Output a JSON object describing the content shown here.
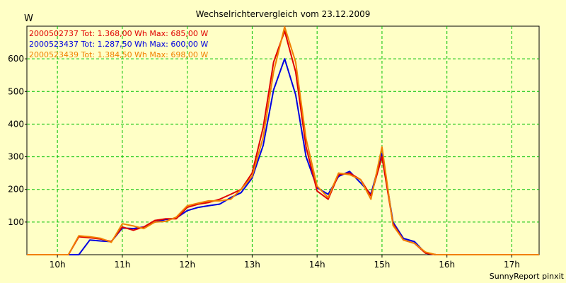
{
  "chart_data": {
    "type": "line",
    "title": "Wechselrichtervergleich vom 23.12.2009",
    "ylabel": "W",
    "footer": "SunnyReport pinxit",
    "xlim": [
      9.53,
      17.42
    ],
    "ylim": [
      0,
      700
    ],
    "grid": true,
    "legend_position": "top-left",
    "x_ticks": [
      {
        "value": 10,
        "label": "10h"
      },
      {
        "value": 11,
        "label": "11h"
      },
      {
        "value": 12,
        "label": "12h"
      },
      {
        "value": 13,
        "label": "13h"
      },
      {
        "value": 14,
        "label": "14h"
      },
      {
        "value": 15,
        "label": "15h"
      },
      {
        "value": 16,
        "label": "16h"
      },
      {
        "value": 17,
        "label": "17h"
      }
    ],
    "y_ticks": [
      {
        "value": 100,
        "label": "100"
      },
      {
        "value": 200,
        "label": "200"
      },
      {
        "value": 300,
        "label": "300"
      },
      {
        "value": 400,
        "label": "400"
      },
      {
        "value": 500,
        "label": "500"
      },
      {
        "value": 600,
        "label": "600"
      }
    ],
    "x": [
      9.53,
      9.67,
      9.83,
      10.0,
      10.17,
      10.33,
      10.5,
      10.67,
      10.83,
      11.0,
      11.17,
      11.33,
      11.5,
      11.67,
      11.83,
      12.0,
      12.17,
      12.33,
      12.5,
      12.67,
      12.83,
      13.0,
      13.17,
      13.33,
      13.5,
      13.67,
      13.83,
      14.0,
      14.17,
      14.33,
      14.5,
      14.67,
      14.83,
      15.0,
      15.17,
      15.33,
      15.5,
      15.67,
      15.83,
      16.0,
      16.17,
      16.33,
      16.5,
      16.67,
      16.83,
      17.0,
      17.17,
      17.42
    ],
    "series": [
      {
        "name": "2000502737 Tot: 1.368,00 Wh Max: 685,00 W",
        "color": "#e00000",
        "values": [
          0,
          0,
          0,
          0,
          0,
          55,
          52,
          48,
          40,
          85,
          75,
          85,
          105,
          110,
          110,
          145,
          155,
          160,
          170,
          185,
          200,
          250,
          390,
          590,
          685,
          560,
          330,
          195,
          170,
          245,
          250,
          230,
          180,
          300,
          95,
          45,
          35,
          5,
          0,
          0,
          0,
          0,
          0,
          0,
          0,
          0,
          0,
          0
        ]
      },
      {
        "name": "2000523437 Tot: 1.287,50 Wh Max: 600,00 W",
        "color": "#0000e0",
        "values": [
          0,
          0,
          0,
          0,
          0,
          0,
          45,
          42,
          40,
          82,
          80,
          85,
          100,
          108,
          112,
          135,
          145,
          150,
          155,
          175,
          190,
          235,
          335,
          505,
          600,
          490,
          300,
          205,
          185,
          240,
          255,
          220,
          185,
          310,
          100,
          50,
          40,
          5,
          0,
          0,
          0,
          0,
          0,
          0,
          0,
          0,
          0,
          0
        ]
      },
      {
        "name": "2000523439 Tot: 1.384,50 Wh Max: 698,00 W",
        "color": "#f08000",
        "values": [
          0,
          0,
          0,
          0,
          0,
          58,
          55,
          50,
          38,
          95,
          88,
          80,
          100,
          102,
          115,
          150,
          158,
          165,
          165,
          170,
          200,
          240,
          360,
          560,
          698,
          590,
          355,
          210,
          175,
          250,
          245,
          230,
          170,
          330,
          90,
          45,
          35,
          8,
          0,
          0,
          0,
          0,
          0,
          0,
          0,
          0,
          0,
          0
        ]
      }
    ]
  }
}
